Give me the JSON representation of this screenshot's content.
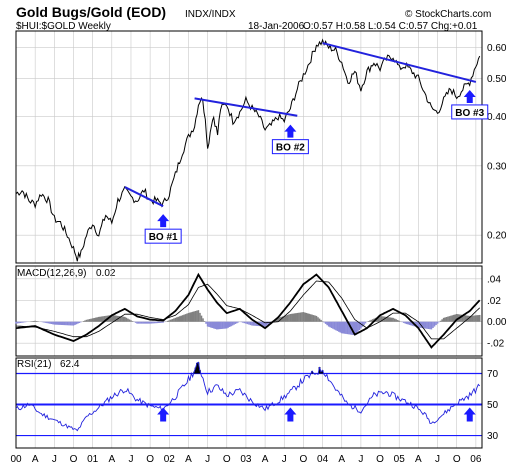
{
  "header": {
    "title": "Gold Bugs/Gold (EOD)",
    "exchange": "INDX/INDX",
    "symbol": "$HUI:$GOLD Weekly",
    "date": "18-Jan-2006",
    "ohlc": "O:0.57 H:0.58 L:0.54 C:0.57 Chg:+0.01",
    "watermark": "© StockCharts.com"
  },
  "colors": {
    "price_line": "#000000",
    "trend_line": "#2222dd",
    "arrow": "#1a1aff",
    "label_border": "#1a1aff",
    "grid": "#c9c9c9",
    "macd_hist": "#808080",
    "macd_hist_neg": "#8a8ad8",
    "rsi_line": "#2222dd",
    "rsi_level": "#1a1aff",
    "rsi_fill": "#000000"
  },
  "chart_data": [
    {
      "type": "line",
      "name": "price",
      "scale": "log",
      "ylim": [
        0.17,
        0.66
      ],
      "y_ticks": [
        0.6,
        0.5,
        0.4,
        0.3,
        0.2
      ],
      "y_tick_labels": [
        "0.60",
        "0.50",
        "0.40",
        "0.30",
        "0.20"
      ],
      "x_range": [
        2000.0,
        2006.08
      ],
      "points": [
        [
          2000.0,
          0.255
        ],
        [
          2000.08,
          0.26
        ],
        [
          2000.17,
          0.245
        ],
        [
          2000.25,
          0.24
        ],
        [
          2000.33,
          0.255
        ],
        [
          2000.42,
          0.245
        ],
        [
          2000.5,
          0.22
        ],
        [
          2000.58,
          0.215
        ],
        [
          2000.67,
          0.2
        ],
        [
          2000.75,
          0.185
        ],
        [
          2000.8,
          0.175
        ],
        [
          2000.85,
          0.18
        ],
        [
          2000.92,
          0.2
        ],
        [
          2001.0,
          0.215
        ],
        [
          2001.08,
          0.2
        ],
        [
          2001.17,
          0.225
        ],
        [
          2001.25,
          0.215
        ],
        [
          2001.33,
          0.245
        ],
        [
          2001.42,
          0.26
        ],
        [
          2001.5,
          0.25
        ],
        [
          2001.58,
          0.245
        ],
        [
          2001.67,
          0.26
        ],
        [
          2001.75,
          0.245
        ],
        [
          2001.83,
          0.245
        ],
        [
          2001.92,
          0.24
        ],
        [
          2002.0,
          0.255
        ],
        [
          2002.08,
          0.285
        ],
        [
          2002.17,
          0.325
        ],
        [
          2002.25,
          0.355
        ],
        [
          2002.33,
          0.38
        ],
        [
          2002.38,
          0.43
        ],
        [
          2002.42,
          0.45
        ],
        [
          2002.47,
          0.4
        ],
        [
          2002.5,
          0.33
        ],
        [
          2002.55,
          0.385
        ],
        [
          2002.58,
          0.4
        ],
        [
          2002.63,
          0.36
        ],
        [
          2002.67,
          0.42
        ],
        [
          2002.75,
          0.43
        ],
        [
          2002.83,
          0.39
        ],
        [
          2002.92,
          0.41
        ],
        [
          2003.0,
          0.44
        ],
        [
          2003.08,
          0.42
        ],
        [
          2003.17,
          0.4
        ],
        [
          2003.25,
          0.37
        ],
        [
          2003.33,
          0.38
        ],
        [
          2003.42,
          0.4
        ],
        [
          2003.5,
          0.39
        ],
        [
          2003.58,
          0.42
        ],
        [
          2003.67,
          0.47
        ],
        [
          2003.75,
          0.51
        ],
        [
          2003.83,
          0.55
        ],
        [
          2003.92,
          0.61
        ],
        [
          2004.0,
          0.62
        ],
        [
          2004.08,
          0.6
        ],
        [
          2004.17,
          0.59
        ],
        [
          2004.25,
          0.55
        ],
        [
          2004.33,
          0.49
        ],
        [
          2004.42,
          0.52
        ],
        [
          2004.5,
          0.47
        ],
        [
          2004.58,
          0.52
        ],
        [
          2004.67,
          0.55
        ],
        [
          2004.75,
          0.53
        ],
        [
          2004.83,
          0.56
        ],
        [
          2004.92,
          0.57
        ],
        [
          2005.0,
          0.53
        ],
        [
          2005.08,
          0.54
        ],
        [
          2005.17,
          0.52
        ],
        [
          2005.25,
          0.5
        ],
        [
          2005.33,
          0.46
        ],
        [
          2005.42,
          0.42
        ],
        [
          2005.5,
          0.41
        ],
        [
          2005.58,
          0.44
        ],
        [
          2005.67,
          0.47
        ],
        [
          2005.75,
          0.45
        ],
        [
          2005.83,
          0.47
        ],
        [
          2005.92,
          0.49
        ],
        [
          2006.0,
          0.54
        ],
        [
          2006.05,
          0.57
        ]
      ],
      "trend_lines": [
        {
          "from": [
            2001.42,
            0.265
          ],
          "to": [
            2001.92,
            0.237
          ]
        },
        {
          "from": [
            2002.33,
            0.445
          ],
          "to": [
            2003.67,
            0.402
          ]
        },
        {
          "from": [
            2004.0,
            0.615
          ],
          "to": [
            2006.0,
            0.49
          ]
        }
      ],
      "annotations": [
        {
          "label": "BO #1",
          "at": [
            2001.92,
            0.237
          ]
        },
        {
          "label": "BO #2",
          "at": [
            2003.58,
            0.4
          ]
        },
        {
          "label": "BO #3",
          "at": [
            2005.92,
            0.49
          ]
        }
      ]
    },
    {
      "type": "line",
      "name": "MACD(12,26,9)",
      "title": "MACD(12,26,9)",
      "value_label": "0.02",
      "ylim": [
        -0.032,
        0.052
      ],
      "y_ticks": [
        0.04,
        0.02,
        0.0,
        -0.02
      ],
      "y_tick_labels": [
        ".04",
        ".02",
        "0.00",
        "-.02"
      ],
      "x_range": [
        2000.0,
        2006.08
      ],
      "macd": [
        [
          2000.0,
          -0.006
        ],
        [
          2000.25,
          -0.004
        ],
        [
          2000.5,
          -0.012
        ],
        [
          2000.75,
          -0.018
        ],
        [
          2000.92,
          -0.012
        ],
        [
          2001.08,
          -0.004
        ],
        [
          2001.25,
          0.006
        ],
        [
          2001.42,
          0.012
        ],
        [
          2001.58,
          0.005
        ],
        [
          2001.75,
          0.002
        ],
        [
          2001.92,
          0.001
        ],
        [
          2002.08,
          0.01
        ],
        [
          2002.25,
          0.025
        ],
        [
          2002.38,
          0.044
        ],
        [
          2002.5,
          0.03
        ],
        [
          2002.62,
          0.018
        ],
        [
          2002.75,
          0.008
        ],
        [
          2002.92,
          0.012
        ],
        [
          2003.08,
          0.002
        ],
        [
          2003.25,
          -0.006
        ],
        [
          2003.42,
          0.004
        ],
        [
          2003.58,
          0.018
        ],
        [
          2003.75,
          0.035
        ],
        [
          2003.92,
          0.044
        ],
        [
          2004.08,
          0.032
        ],
        [
          2004.25,
          0.01
        ],
        [
          2004.42,
          -0.012
        ],
        [
          2004.58,
          -0.006
        ],
        [
          2004.75,
          0.006
        ],
        [
          2004.92,
          0.012
        ],
        [
          2005.08,
          0.006
        ],
        [
          2005.25,
          -0.006
        ],
        [
          2005.42,
          -0.024
        ],
        [
          2005.58,
          -0.012
        ],
        [
          2005.75,
          0.002
        ],
        [
          2005.92,
          0.01
        ],
        [
          2006.05,
          0.02
        ]
      ],
      "signal": [
        [
          2000.0,
          -0.004
        ],
        [
          2000.25,
          -0.005
        ],
        [
          2000.5,
          -0.009
        ],
        [
          2000.75,
          -0.014
        ],
        [
          2000.92,
          -0.014
        ],
        [
          2001.08,
          -0.009
        ],
        [
          2001.25,
          -0.001
        ],
        [
          2001.42,
          0.007
        ],
        [
          2001.58,
          0.007
        ],
        [
          2001.75,
          0.004
        ],
        [
          2001.92,
          0.002
        ],
        [
          2002.08,
          0.006
        ],
        [
          2002.25,
          0.016
        ],
        [
          2002.38,
          0.032
        ],
        [
          2002.5,
          0.035
        ],
        [
          2002.62,
          0.026
        ],
        [
          2002.75,
          0.015
        ],
        [
          2002.92,
          0.012
        ],
        [
          2003.08,
          0.006
        ],
        [
          2003.25,
          -0.001
        ],
        [
          2003.42,
          0.0
        ],
        [
          2003.58,
          0.01
        ],
        [
          2003.75,
          0.025
        ],
        [
          2003.92,
          0.038
        ],
        [
          2004.08,
          0.037
        ],
        [
          2004.25,
          0.022
        ],
        [
          2004.42,
          0.002
        ],
        [
          2004.58,
          -0.006
        ],
        [
          2004.75,
          0.0
        ],
        [
          2004.92,
          0.008
        ],
        [
          2005.08,
          0.008
        ],
        [
          2005.25,
          0.0
        ],
        [
          2005.42,
          -0.016
        ],
        [
          2005.58,
          -0.016
        ],
        [
          2005.75,
          -0.006
        ],
        [
          2005.92,
          0.004
        ],
        [
          2006.05,
          0.013
        ]
      ]
    },
    {
      "type": "line",
      "name": "RSI(21)",
      "title": "RSI(21)",
      "value_label": "62.4",
      "ylim": [
        22,
        80
      ],
      "y_ticks": [
        70,
        50,
        30
      ],
      "y_tick_labels": [
        "70",
        "50",
        "30"
      ],
      "levels": [
        70,
        50,
        30
      ],
      "x_range": [
        2000.0,
        2006.08
      ],
      "x_tick_labels": [
        "00",
        "A",
        "J",
        "O",
        "01",
        "A",
        "J",
        "O",
        "02",
        "A",
        "J",
        "O",
        "03",
        "A",
        "J",
        "O",
        "04",
        "A",
        "J",
        "O",
        "05",
        "A",
        "J",
        "O",
        "06"
      ],
      "x_tick_values": [
        2000.0,
        2000.25,
        2000.5,
        2000.75,
        2001.0,
        2001.25,
        2001.5,
        2001.75,
        2002.0,
        2002.25,
        2002.5,
        2002.75,
        2003.0,
        2003.25,
        2003.5,
        2003.75,
        2004.0,
        2004.25,
        2004.5,
        2004.75,
        2005.0,
        2005.25,
        2005.5,
        2005.75,
        2006.0
      ],
      "points": [
        [
          2000.0,
          47
        ],
        [
          2000.17,
          50
        ],
        [
          2000.33,
          44
        ],
        [
          2000.5,
          40
        ],
        [
          2000.67,
          36
        ],
        [
          2000.8,
          33
        ],
        [
          2000.92,
          42
        ],
        [
          2001.08,
          48
        ],
        [
          2001.25,
          55
        ],
        [
          2001.42,
          60
        ],
        [
          2001.58,
          53
        ],
        [
          2001.75,
          49
        ],
        [
          2001.92,
          47
        ],
        [
          2002.08,
          55
        ],
        [
          2002.25,
          66
        ],
        [
          2002.38,
          76
        ],
        [
          2002.5,
          58
        ],
        [
          2002.62,
          62
        ],
        [
          2002.75,
          56
        ],
        [
          2002.92,
          59
        ],
        [
          2003.08,
          52
        ],
        [
          2003.25,
          47
        ],
        [
          2003.42,
          52
        ],
        [
          2003.58,
          58
        ],
        [
          2003.75,
          66
        ],
        [
          2003.92,
          71
        ],
        [
          2004.0,
          73
        ],
        [
          2004.17,
          60
        ],
        [
          2004.33,
          50
        ],
        [
          2004.5,
          46
        ],
        [
          2004.67,
          56
        ],
        [
          2004.83,
          58
        ],
        [
          2005.0,
          54
        ],
        [
          2005.17,
          50
        ],
        [
          2005.33,
          44
        ],
        [
          2005.42,
          38
        ],
        [
          2005.58,
          44
        ],
        [
          2005.75,
          51
        ],
        [
          2005.92,
          56
        ],
        [
          2006.05,
          62
        ]
      ],
      "arrows_at": [
        2001.92,
        2003.58,
        2005.92
      ]
    }
  ]
}
